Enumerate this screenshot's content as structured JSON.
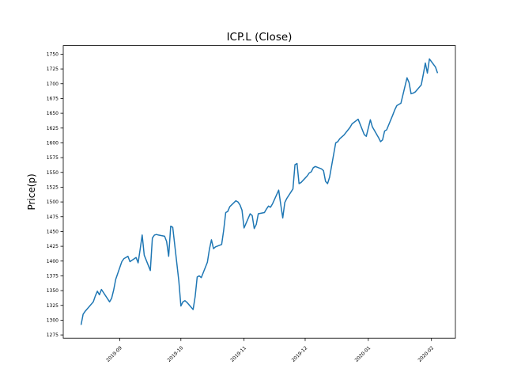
{
  "figure": {
    "background": "#ffffff",
    "axis_color": "#000000"
  },
  "chart_data": {
    "type": "line",
    "title": "ICP.L (Close)",
    "ylabel": "Price(p)",
    "ylim": [
      1269.5,
      1764.5
    ],
    "grid": false,
    "legend": "none",
    "y_ticks": [
      1275,
      1300,
      1325,
      1350,
      1375,
      1400,
      1425,
      1450,
      1475,
      1500,
      1525,
      1550,
      1575,
      1600,
      1625,
      1650,
      1675,
      1700,
      1725,
      1750
    ],
    "x_ticks": [
      {
        "date": "2019-09-01",
        "label": "2019-09"
      },
      {
        "date": "2019-10-01",
        "label": "2019-10"
      },
      {
        "date": "2019-11-01",
        "label": "2019-11"
      },
      {
        "date": "2019-12-01",
        "label": "2019-12"
      },
      {
        "date": "2020-01-01",
        "label": "2020-01"
      },
      {
        "date": "2020-02-01",
        "label": "2020-02"
      }
    ],
    "series": [
      {
        "name": "Close",
        "color": "#1f77b4",
        "dates": [
          "2019-08-13",
          "2019-08-14",
          "2019-08-15",
          "2019-08-16",
          "2019-08-19",
          "2019-08-20",
          "2019-08-21",
          "2019-08-22",
          "2019-08-23",
          "2019-08-27",
          "2019-08-28",
          "2019-08-29",
          "2019-08-30",
          "2019-09-02",
          "2019-09-03",
          "2019-09-04",
          "2019-09-05",
          "2019-09-06",
          "2019-09-09",
          "2019-09-10",
          "2019-09-11",
          "2019-09-12",
          "2019-09-13",
          "2019-09-16",
          "2019-09-17",
          "2019-09-18",
          "2019-09-19",
          "2019-09-20",
          "2019-09-23",
          "2019-09-24",
          "2019-09-25",
          "2019-09-26",
          "2019-09-27",
          "2019-09-30",
          "2019-10-01",
          "2019-10-02",
          "2019-10-03",
          "2019-10-04",
          "2019-10-07",
          "2019-10-08",
          "2019-10-09",
          "2019-10-10",
          "2019-10-11",
          "2019-10-14",
          "2019-10-15",
          "2019-10-16",
          "2019-10-17",
          "2019-10-18",
          "2019-10-21",
          "2019-10-22",
          "2019-10-23",
          "2019-10-24",
          "2019-10-25",
          "2019-10-28",
          "2019-10-29",
          "2019-10-30",
          "2019-10-31",
          "2019-11-01",
          "2019-11-04",
          "2019-11-05",
          "2019-11-06",
          "2019-11-07",
          "2019-11-08",
          "2019-11-11",
          "2019-11-12",
          "2019-11-13",
          "2019-11-14",
          "2019-11-15",
          "2019-11-18",
          "2019-11-19",
          "2019-11-20",
          "2019-11-21",
          "2019-11-22",
          "2019-11-25",
          "2019-11-26",
          "2019-11-27",
          "2019-11-28",
          "2019-11-29",
          "2019-12-02",
          "2019-12-03",
          "2019-12-04",
          "2019-12-05",
          "2019-12-06",
          "2019-12-09",
          "2019-12-10",
          "2019-12-11",
          "2019-12-12",
          "2019-12-13",
          "2019-12-16",
          "2019-12-17",
          "2019-12-18",
          "2019-12-19",
          "2019-12-20",
          "2019-12-23",
          "2019-12-24",
          "2019-12-27",
          "2019-12-30",
          "2019-12-31",
          "2020-01-02",
          "2020-01-03",
          "2020-01-06",
          "2020-01-07",
          "2020-01-08",
          "2020-01-09",
          "2020-01-10",
          "2020-01-13",
          "2020-01-14",
          "2020-01-15",
          "2020-01-16",
          "2020-01-17",
          "2020-01-20",
          "2020-01-21",
          "2020-01-22",
          "2020-01-23",
          "2020-01-24",
          "2020-01-27",
          "2020-01-28",
          "2020-01-29",
          "2020-01-30",
          "2020-01-31",
          "2020-02-03",
          "2020-02-04"
        ],
        "values": [
          1292,
          1310,
          1315,
          1319,
          1331,
          1341,
          1349,
          1343,
          1352,
          1331,
          1337,
          1351,
          1369,
          1399,
          1404,
          1406,
          1408,
          1399,
          1406,
          1397,
          1420,
          1444,
          1410,
          1384,
          1439,
          1444,
          1445,
          1444,
          1442,
          1433,
          1408,
          1459,
          1457,
          1366,
          1324,
          1331,
          1333,
          1330,
          1318,
          1340,
          1373,
          1375,
          1372,
          1398,
          1420,
          1436,
          1421,
          1424,
          1428,
          1452,
          1482,
          1484,
          1492,
          1502,
          1500,
          1495,
          1486,
          1456,
          1480,
          1477,
          1455,
          1462,
          1480,
          1482,
          1488,
          1493,
          1491,
          1497,
          1520,
          1496,
          1473,
          1499,
          1506,
          1522,
          1563,
          1565,
          1531,
          1533,
          1544,
          1549,
          1551,
          1558,
          1560,
          1556,
          1553,
          1535,
          1531,
          1542,
          1600,
          1602,
          1607,
          1610,
          1613,
          1626,
          1632,
          1640,
          1614,
          1611,
          1639,
          1627,
          1609,
          1602,
          1605,
          1620,
          1622,
          1647,
          1656,
          1663,
          1665,
          1667,
          1710,
          1702,
          1683,
          1684,
          1686,
          1698,
          1716,
          1735,
          1718,
          1742,
          1728,
          1718
        ]
      }
    ]
  }
}
